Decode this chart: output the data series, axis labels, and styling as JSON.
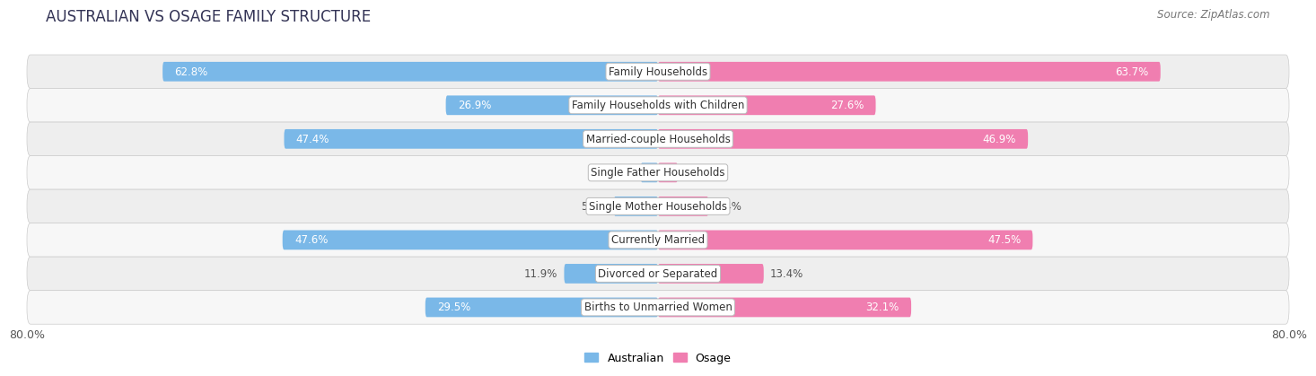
{
  "title": "AUSTRALIAN VS OSAGE FAMILY STRUCTURE",
  "source": "Source: ZipAtlas.com",
  "categories": [
    "Family Households",
    "Family Households with Children",
    "Married-couple Households",
    "Single Father Households",
    "Single Mother Households",
    "Currently Married",
    "Divorced or Separated",
    "Births to Unmarried Women"
  ],
  "australian_values": [
    62.8,
    26.9,
    47.4,
    2.2,
    5.6,
    47.6,
    11.9,
    29.5
  ],
  "osage_values": [
    63.7,
    27.6,
    46.9,
    2.5,
    6.4,
    47.5,
    13.4,
    32.1
  ],
  "australian_color": "#7ab8e8",
  "osage_color": "#f07eb0",
  "background_row_light": "#eeeeee",
  "background_row_dark": "#e4e4e4",
  "xlim": 80.0,
  "x_axis_label_left": "80.0%",
  "x_axis_label_right": "80.0%",
  "bar_height": 0.58,
  "label_fontsize": 8.5,
  "value_fontsize": 8.5,
  "title_fontsize": 12,
  "source_fontsize": 8.5,
  "legend_labels": [
    "Australian",
    "Osage"
  ]
}
